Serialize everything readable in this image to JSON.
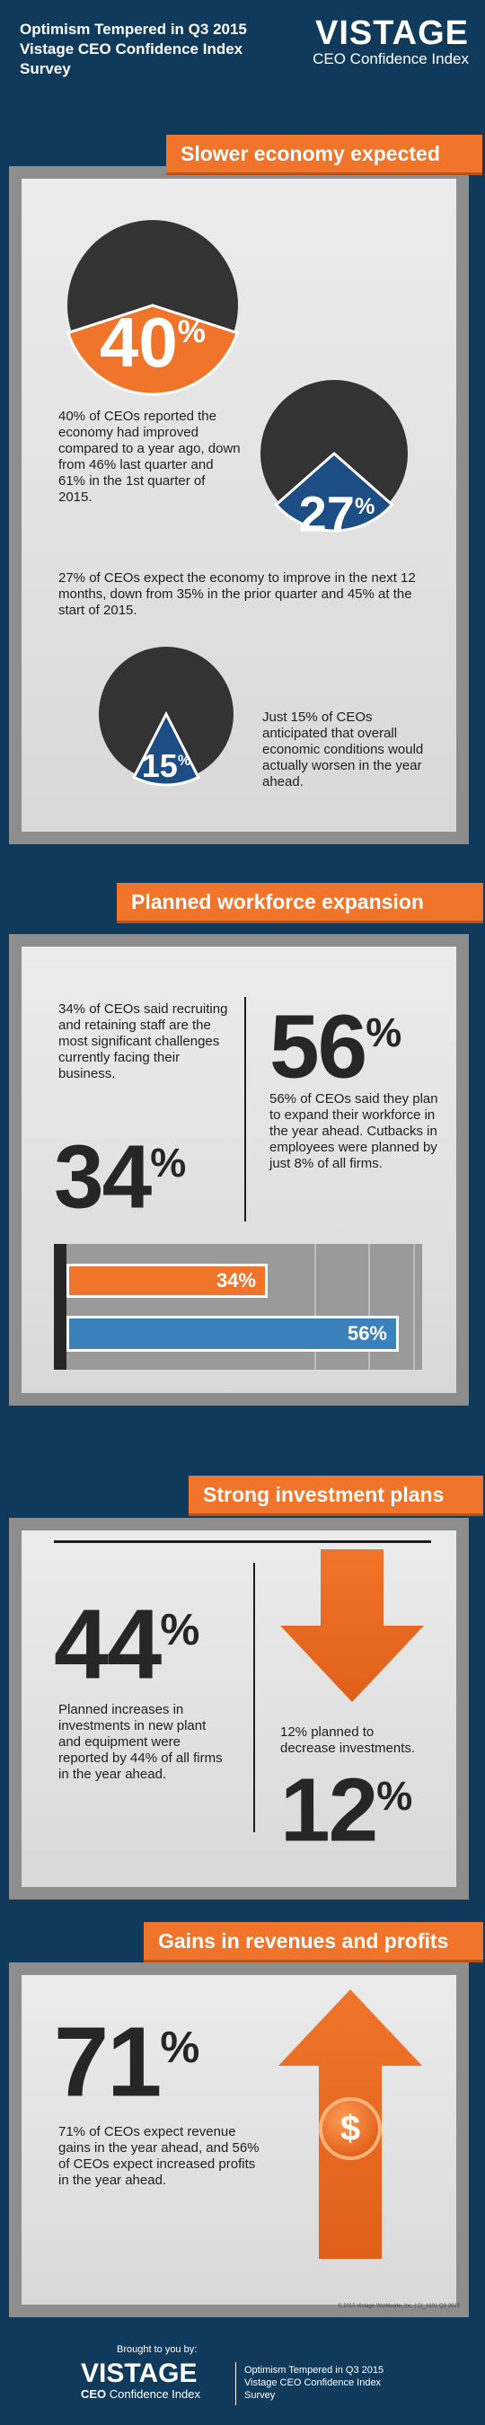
{
  "header": {
    "title": "Optimism Tempered in Q3 2015 Vistage CEO Confidence Index Survey",
    "brand_name": "VISTAGE",
    "brand_sub": "CEO Confidence Index"
  },
  "section1": {
    "banner": "Slower economy expected",
    "pie1": {
      "value": "40",
      "pct": "%",
      "text": "40% of CEOs reported the economy had improved compared to a year ago, down from 46% last quarter and 61% in the 1st quarter of 2015.",
      "fill": 0.4,
      "color": "#f0742a"
    },
    "pie2": {
      "value": "27",
      "pct": "%",
      "text": "27% of CEOs expect the economy to improve in the next 12 months, down from 35% in the prior quarter and 45% at the start of 2015.",
      "fill": 0.27,
      "color": "#1c4e85"
    },
    "pie3": {
      "value": "15",
      "pct": "%",
      "text": "Just 15% of CEOs anticipated that overall economic conditions would actually worsen in the year ahead.",
      "fill": 0.15,
      "color": "#1c4e85"
    }
  },
  "section2": {
    "banner": "Planned workforce expansion",
    "left_text": "34% of CEOs said recruiting and retaining staff are the most significant challenges currently facing their business.",
    "left_big": "34",
    "right_big": "56",
    "pct": "%",
    "right_text": "56% of CEOs said they plan to expand their workforce in the year ahead. Cutbacks in employees were planned by just 8% of all firms.",
    "bars": [
      {
        "label": "34%",
        "value": 34,
        "color": "#f0742a"
      },
      {
        "label": "56%",
        "value": 56,
        "color": "#3b82bd"
      }
    ]
  },
  "section3": {
    "banner": "Strong investment plans",
    "big_left": "44",
    "pct": "%",
    "left_text": "Planned increases in investments in new plant and equipment were reported by 44% of all firms in the year ahead.",
    "right_text": "12% planned  to decrease investments.",
    "big_right": "12"
  },
  "section4": {
    "banner": "Gains in revenues and profits",
    "big": "71",
    "pct": "%",
    "text": "71% of CEOs expect revenue gains in the year ahead, and 56% of CEOs expect increased profits in the year ahead.",
    "dollar": "$",
    "small_print": "© 2015 Vistage Worldwide, Inc. | CI_1601 Q3 2015"
  },
  "footer": {
    "brought": "Brought to you by:",
    "brand_name": "VISTAGE",
    "brand_sub_strong": "CEO",
    "brand_sub": "Confidence Index",
    "title": "Optimism Tempered in Q3 2015 Vistage CEO Confidence Index Survey"
  }
}
